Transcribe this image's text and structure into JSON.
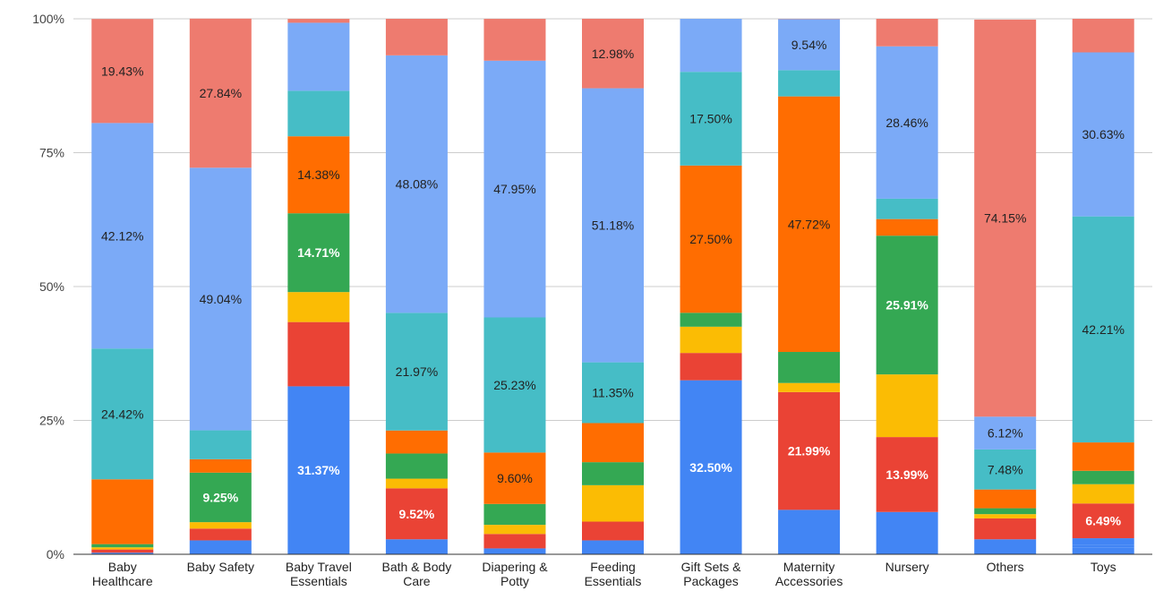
{
  "chart_data": {
    "type": "bar",
    "stacked": "percent",
    "title": "",
    "xlabel": "",
    "ylabel": "",
    "ylim": [
      0,
      100
    ],
    "y_ticks": [
      "0%",
      "25%",
      "50%",
      "75%",
      "100%"
    ],
    "grid": true,
    "legend": "none",
    "categories": [
      [
        "Baby",
        "Healthcare"
      ],
      [
        "Baby Safety"
      ],
      [
        "Baby Travel",
        "Essentials"
      ],
      [
        "Bath & Body",
        "Care"
      ],
      [
        "Diapering &",
        "Potty"
      ],
      [
        "Feeding",
        "Essentials"
      ],
      [
        "Gift Sets &",
        "Packages"
      ],
      [
        "Maternity",
        "Accessories"
      ],
      [
        "Nursery"
      ],
      [
        "Others"
      ],
      [
        "Toys"
      ]
    ],
    "series": [
      {
        "color": "#4285f4",
        "label_color": "#ffffff",
        "values": [
          0.3,
          2.6,
          31.37,
          2.8,
          1.1,
          2.6,
          32.5,
          8.3,
          7.9,
          2.8,
          1.3
        ]
      },
      {
        "color": "#4285f4",
        "label_color": "#ffffff",
        "values": [
          0,
          0,
          0,
          0,
          0,
          0,
          0,
          0,
          0,
          0,
          0.4
        ]
      },
      {
        "color": "#4285f4",
        "label_color": "#ffffff",
        "values": [
          0,
          0,
          0,
          0,
          0,
          0,
          0,
          0,
          0,
          0,
          1.3
        ]
      },
      {
        "color": "#ea4335",
        "label_color": "#ffffff",
        "values": [
          0.6,
          2.2,
          12.0,
          9.52,
          2.7,
          3.5,
          5.1,
          21.99,
          13.99,
          3.9,
          6.49
        ]
      },
      {
        "color": "#fbbc04",
        "label_color": "#222222",
        "values": [
          0.4,
          1.2,
          5.6,
          1.8,
          1.7,
          6.8,
          4.9,
          1.7,
          11.7,
          0.8,
          3.6
        ]
      },
      {
        "color": "#34a853",
        "label_color": "#ffffff",
        "values": [
          0.6,
          9.25,
          14.71,
          4.7,
          3.9,
          4.3,
          2.6,
          5.8,
          25.91,
          1.1,
          2.5
        ]
      },
      {
        "color": "#ff6d01",
        "label_color": "#222222",
        "values": [
          12.1,
          2.5,
          14.38,
          4.3,
          9.6,
          7.3,
          27.5,
          47.72,
          3.1,
          3.5,
          5.3
        ]
      },
      {
        "color": "#46bdc6",
        "label_color": "#222222",
        "values": [
          24.42,
          5.4,
          8.5,
          21.97,
          25.23,
          11.35,
          17.5,
          4.9,
          3.8,
          7.48,
          42.21
        ]
      },
      {
        "color": "#7baaf7",
        "label_color": "#222222",
        "values": [
          42.12,
          49.04,
          12.7,
          48.08,
          47.95,
          51.18,
          9.9,
          9.54,
          28.46,
          6.12,
          30.63
        ]
      },
      {
        "color": "#ee7b6f",
        "label_color": "#222222",
        "values": [
          19.43,
          27.84,
          0.73,
          6.83,
          7.81,
          12.98,
          0,
          0.05,
          5.14,
          74.15,
          6.27
        ]
      }
    ],
    "data_labels": [
      {
        "category": 0,
        "series": 7,
        "text": "24.42%"
      },
      {
        "category": 0,
        "series": 8,
        "text": "42.12%"
      },
      {
        "category": 0,
        "series": 9,
        "text": "19.43%"
      },
      {
        "category": 1,
        "series": 5,
        "text": "9.25%"
      },
      {
        "category": 1,
        "series": 8,
        "text": "49.04%"
      },
      {
        "category": 1,
        "series": 9,
        "text": "27.84%"
      },
      {
        "category": 2,
        "series": 0,
        "text": "31.37%"
      },
      {
        "category": 2,
        "series": 5,
        "text": "14.71%"
      },
      {
        "category": 2,
        "series": 6,
        "text": "14.38%"
      },
      {
        "category": 3,
        "series": 3,
        "text": "9.52%"
      },
      {
        "category": 3,
        "series": 7,
        "text": "21.97%"
      },
      {
        "category": 3,
        "series": 8,
        "text": "48.08%"
      },
      {
        "category": 4,
        "series": 6,
        "text": "9.60%"
      },
      {
        "category": 4,
        "series": 7,
        "text": "25.23%"
      },
      {
        "category": 4,
        "series": 8,
        "text": "47.95%"
      },
      {
        "category": 5,
        "series": 7,
        "text": "11.35%"
      },
      {
        "category": 5,
        "series": 8,
        "text": "51.18%"
      },
      {
        "category": 5,
        "series": 9,
        "text": "12.98%"
      },
      {
        "category": 6,
        "series": 0,
        "text": "32.50%"
      },
      {
        "category": 6,
        "series": 6,
        "text": "27.50%"
      },
      {
        "category": 6,
        "series": 7,
        "text": "17.50%"
      },
      {
        "category": 7,
        "series": 3,
        "text": "21.99%"
      },
      {
        "category": 7,
        "series": 6,
        "text": "47.72%"
      },
      {
        "category": 7,
        "series": 8,
        "text": "9.54%"
      },
      {
        "category": 8,
        "series": 3,
        "text": "13.99%"
      },
      {
        "category": 8,
        "series": 5,
        "text": "25.91%"
      },
      {
        "category": 8,
        "series": 8,
        "text": "28.46%"
      },
      {
        "category": 9,
        "series": 7,
        "text": "7.48%"
      },
      {
        "category": 9,
        "series": 8,
        "text": "6.12%"
      },
      {
        "category": 9,
        "series": 9,
        "text": "74.15%"
      },
      {
        "category": 10,
        "series": 3,
        "text": "6.49%"
      },
      {
        "category": 10,
        "series": 7,
        "text": "42.21%"
      },
      {
        "category": 10,
        "series": 8,
        "text": "30.63%"
      }
    ],
    "colors": {
      "gridline": "#cccccc",
      "axis": "#333333",
      "background": "#ffffff"
    }
  }
}
